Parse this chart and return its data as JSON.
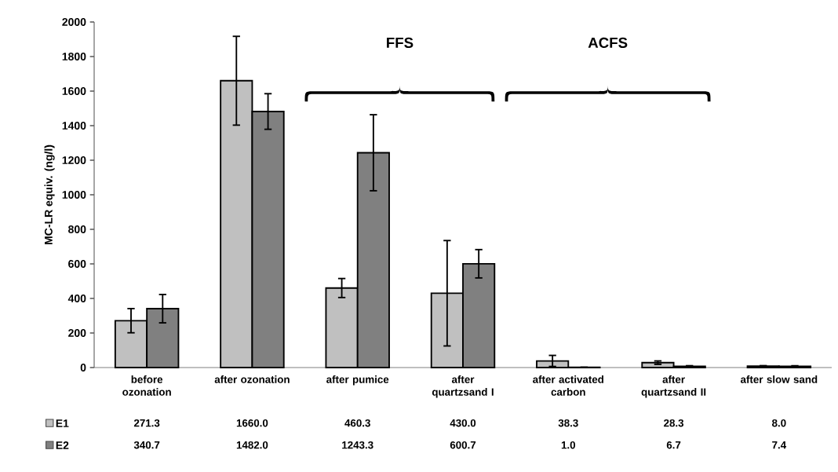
{
  "chart_data": {
    "type": "bar",
    "ylabel": "MC-LR equiv. (ng/l)",
    "categories": [
      "before ozonation",
      "after ozonation",
      "after pumice",
      "after quartzsand I",
      "after activated carbon",
      "after quartzsand II",
      "after slow sand"
    ],
    "series": [
      {
        "name": "E1",
        "color": "#c0c0c0",
        "values": [
          271.3,
          1660.0,
          460.3,
          430.0,
          38.3,
          28.3,
          8.0
        ],
        "errors": [
          70,
          257,
          55,
          305,
          32,
          10,
          3
        ],
        "value_labels": [
          "271.3",
          "1660.0",
          "460.3",
          "430.0",
          "38.3",
          "28.3",
          "8.0"
        ]
      },
      {
        "name": "E2",
        "color": "#808080",
        "values": [
          340.7,
          1482.0,
          1243.3,
          600.7,
          1.0,
          6.7,
          7.4
        ],
        "errors": [
          82,
          103,
          220,
          82,
          1,
          4,
          3
        ],
        "value_labels": [
          "340.7",
          "1482.0",
          "1243.3",
          "600.7",
          "1.0",
          "6.7",
          "7.4"
        ]
      }
    ],
    "ylim": [
      0,
      2000
    ],
    "yticks": [
      0,
      200,
      400,
      600,
      800,
      1000,
      1200,
      1400,
      1600,
      1800,
      2000
    ],
    "annotations": [
      "FFS",
      "ACFS"
    ],
    "legend": "bottom left",
    "grid": false
  }
}
